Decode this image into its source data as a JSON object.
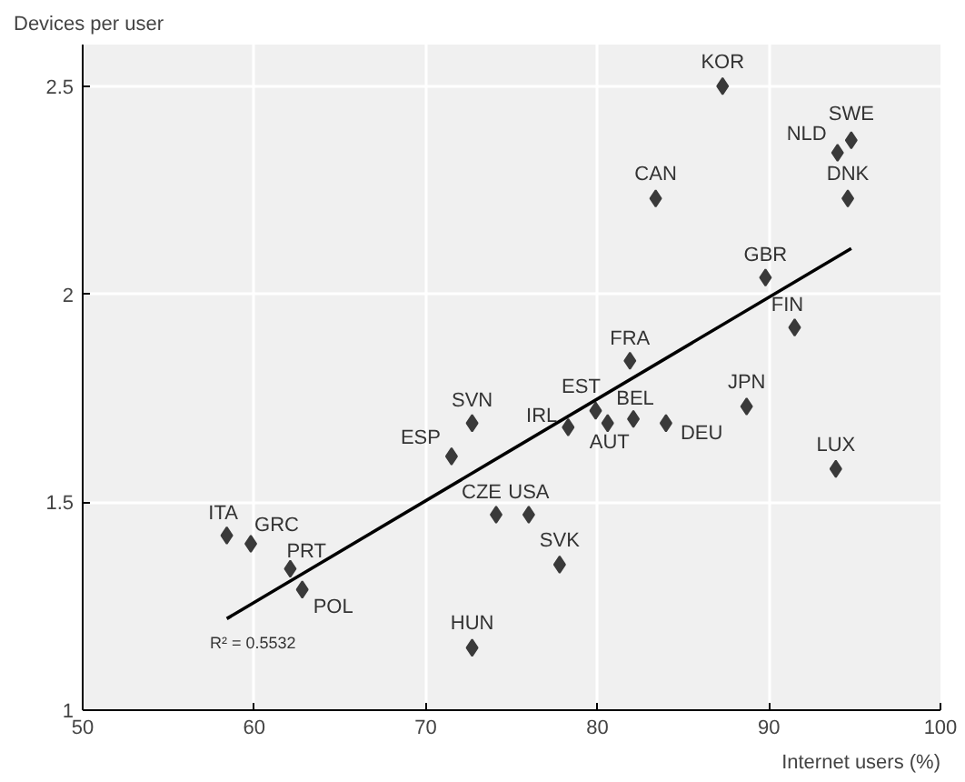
{
  "chart_data": {
    "type": "scatter",
    "ylabel": "Devices per user",
    "xlabel": "Internet users (%)",
    "xlim": [
      50,
      100
    ],
    "ylim": [
      1,
      2.6
    ],
    "xticks": [
      50,
      60,
      70,
      80,
      90,
      100
    ],
    "yticks": [
      1,
      1.5,
      2,
      2.5
    ],
    "grid": true,
    "series": [
      {
        "marker": "diamond",
        "color": "#3a3a3a",
        "x": [
          87.3,
          94.8,
          94.0,
          94.6,
          83.4,
          89.8,
          91.5,
          81.9,
          79.9,
          82.1,
          80.6,
          84.0,
          78.3,
          88.7,
          72.7,
          71.5,
          93.9,
          74.1,
          76.0,
          77.8,
          58.4,
          59.8,
          62.1,
          62.8,
          72.7
        ],
        "values": [
          2.5,
          2.37,
          2.34,
          2.23,
          2.23,
          2.04,
          1.92,
          1.84,
          1.72,
          1.7,
          1.69,
          1.69,
          1.68,
          1.73,
          1.69,
          1.61,
          1.58,
          1.47,
          1.47,
          1.35,
          1.42,
          1.4,
          1.34,
          1.29,
          1.15
        ]
      },
      {
        "type": "line",
        "color": "#000000",
        "x": [
          58.4,
          94.8
        ],
        "values": [
          1.22,
          2.11
        ]
      }
    ],
    "annotations": [
      {
        "text": "KOR",
        "x": 87.3,
        "y": 2.5
      },
      {
        "text": "SWE",
        "x": 94.8,
        "y": 2.37
      },
      {
        "text": "NLD",
        "x": 94.0,
        "y": 2.34
      },
      {
        "text": "DNK",
        "x": 94.6,
        "y": 2.23
      },
      {
        "text": "CAN",
        "x": 83.4,
        "y": 2.23
      },
      {
        "text": "GBR",
        "x": 89.8,
        "y": 2.04
      },
      {
        "text": "FIN",
        "x": 91.5,
        "y": 1.92
      },
      {
        "text": "FRA",
        "x": 81.9,
        "y": 1.84
      },
      {
        "text": "EST",
        "x": 79.9,
        "y": 1.72
      },
      {
        "text": "BEL",
        "x": 82.1,
        "y": 1.7
      },
      {
        "text": "AUT",
        "x": 80.6,
        "y": 1.69
      },
      {
        "text": "DEU",
        "x": 84.0,
        "y": 1.69
      },
      {
        "text": "IRL",
        "x": 78.3,
        "y": 1.68
      },
      {
        "text": "JPN",
        "x": 88.7,
        "y": 1.73
      },
      {
        "text": "SVN",
        "x": 72.7,
        "y": 1.69
      },
      {
        "text": "ESP",
        "x": 71.5,
        "y": 1.61
      },
      {
        "text": "LUX",
        "x": 93.9,
        "y": 1.58
      },
      {
        "text": "CZE",
        "x": 74.1,
        "y": 1.47
      },
      {
        "text": "USA",
        "x": 76.0,
        "y": 1.47
      },
      {
        "text": "SVK",
        "x": 77.8,
        "y": 1.35
      },
      {
        "text": "ITA",
        "x": 58.4,
        "y": 1.42
      },
      {
        "text": "GRC",
        "x": 59.8,
        "y": 1.4
      },
      {
        "text": "PRT",
        "x": 62.1,
        "y": 1.34
      },
      {
        "text": "POL",
        "x": 62.8,
        "y": 1.29
      },
      {
        "text": "HUN",
        "x": 72.7,
        "y": 1.15
      },
      "R² = 0.5532"
    ]
  }
}
